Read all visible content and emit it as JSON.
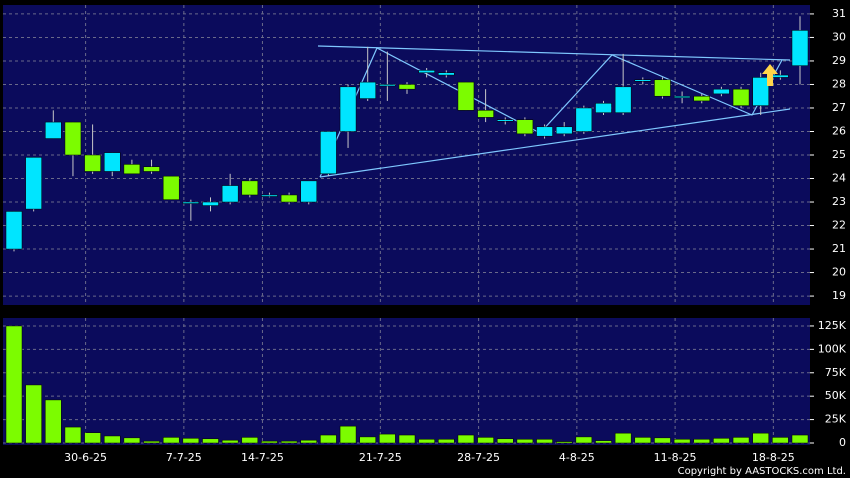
{
  "chart_data": [
    {
      "type": "candlestick",
      "up_color": "#00e5ff",
      "down_color": "#7cfc00",
      "open": [
        21.0,
        22.7,
        25.7,
        26.4,
        25.0,
        24.3,
        24.6,
        24.5,
        24.1,
        23.0,
        22.85,
        23.0,
        23.9,
        23.3,
        23.3,
        23.0,
        24.2,
        26.0,
        27.4,
        28.0,
        28.0,
        28.5,
        28.4,
        28.1,
        26.9,
        26.5,
        26.5,
        25.8,
        25.9,
        26.0,
        26.8,
        26.8,
        28.2,
        28.2,
        27.5,
        27.5,
        27.6,
        27.8,
        27.1,
        28.3,
        28.8
      ],
      "high": [
        22.6,
        24.9,
        26.9,
        26.4,
        26.3,
        25.1,
        24.8,
        24.8,
        24.1,
        23.1,
        23.2,
        24.2,
        24.0,
        23.4,
        23.4,
        23.9,
        26.0,
        28.0,
        29.6,
        29.4,
        28.1,
        28.7,
        28.6,
        28.1,
        27.8,
        26.6,
        26.6,
        26.3,
        26.4,
        27.1,
        27.3,
        29.3,
        28.3,
        28.3,
        27.7,
        27.6,
        27.9,
        27.9,
        28.5,
        28.6,
        30.9
      ],
      "low": [
        20.9,
        22.6,
        25.7,
        24.1,
        24.2,
        24.1,
        24.2,
        24.2,
        23.1,
        22.2,
        22.6,
        22.9,
        23.2,
        23.2,
        22.9,
        22.9,
        24.1,
        25.3,
        27.3,
        27.3,
        27.6,
        28.3,
        28.3,
        26.9,
        26.4,
        26.3,
        25.8,
        25.7,
        25.8,
        25.9,
        26.7,
        26.7,
        28.0,
        27.4,
        27.2,
        27.2,
        27.5,
        27.0,
        26.7,
        28.2,
        28.0
      ],
      "close": [
        22.6,
        24.9,
        26.4,
        25.0,
        24.3,
        25.1,
        24.2,
        24.3,
        23.1,
        23.0,
        23.0,
        23.7,
        23.3,
        23.3,
        23.0,
        23.9,
        26.0,
        27.9,
        28.1,
        28.0,
        27.8,
        28.6,
        28.5,
        26.9,
        26.6,
        26.5,
        25.9,
        26.2,
        26.2,
        27.0,
        27.2,
        27.9,
        28.2,
        27.5,
        27.5,
        27.3,
        27.8,
        27.1,
        28.3,
        28.4,
        30.3
      ],
      "ylim": [
        18.62,
        31.38
      ],
      "yticks": [
        19,
        20,
        21,
        22,
        23,
        24,
        25,
        26,
        27,
        28,
        29,
        30,
        31
      ],
      "grid": true
    },
    {
      "type": "bar",
      "color": "#7cfc00",
      "categories": [
        null,
        null,
        null,
        null,
        "30-6-25",
        null,
        null,
        null,
        null,
        "7-7-25",
        null,
        null,
        null,
        "14-7-25",
        null,
        null,
        null,
        null,
        null,
        "21-7-25",
        null,
        null,
        null,
        null,
        "28-7-25",
        null,
        null,
        null,
        null,
        "4-8-25",
        null,
        null,
        null,
        null,
        "11-8-25",
        null,
        null,
        null,
        null,
        "18-8-25",
        null
      ],
      "values": [
        125000,
        62000,
        46000,
        17000,
        11000,
        7500,
        5500,
        2000,
        6000,
        5000,
        4500,
        3000,
        6000,
        2000,
        2000,
        3000,
        8500,
        18000,
        6500,
        9500,
        8500,
        4000,
        4000,
        8500,
        6000,
        4500,
        4000,
        4000,
        1500,
        6500,
        2500,
        10500,
        6000,
        5500,
        4000,
        4000,
        5000,
        6000,
        10500,
        6000,
        8500
      ],
      "ylim": [
        0,
        133500
      ],
      "yticks": [
        0,
        {
          "value": 25000,
          "label": "25K"
        },
        {
          "value": 50000,
          "label": "50K"
        },
        {
          "value": 75000,
          "label": "75K"
        },
        {
          "value": 100000,
          "label": "100K"
        },
        {
          "value": 125000,
          "label": "125K"
        }
      ],
      "grid": true
    }
  ],
  "copyright": "Copyright by AASTOCKS.com Ltd."
}
